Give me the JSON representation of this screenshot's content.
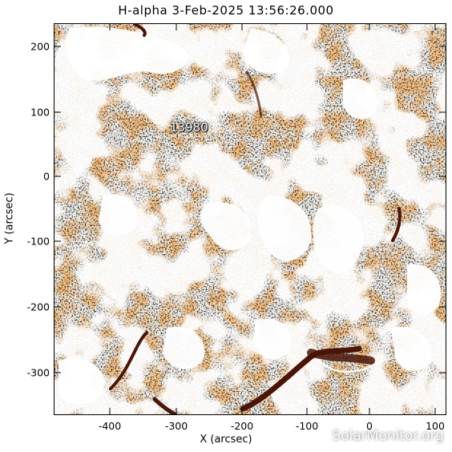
{
  "title": "H-alpha  3-Feb-2025 13:56:26.000",
  "axes": {
    "x_title": "X (arcsec)",
    "y_title": "Y (arcsec)",
    "x_ticks": [
      "-400",
      "-300",
      "-200",
      "-100",
      "0",
      "100"
    ],
    "y_ticks": [
      "200",
      "100",
      "0",
      "-100",
      "-200",
      "-300"
    ]
  },
  "region_label": "13980",
  "watermark": "SolarMonitor.org",
  "colors": {
    "chromosphere": "#f08a3a",
    "plage": "#ffffff",
    "filament": "#4a1406"
  }
}
